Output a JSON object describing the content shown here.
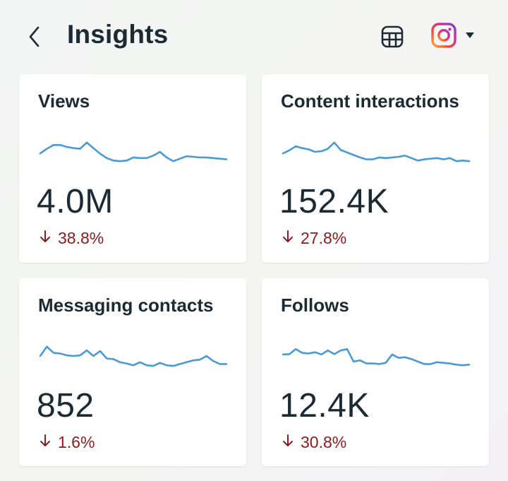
{
  "header": {
    "title": "Insights",
    "back_icon": "chevron-left-icon",
    "table_icon": "table-grid-icon",
    "account_icon": "instagram-icon",
    "dropdown_icon": "caret-down-icon"
  },
  "colors": {
    "sparkline": "#4a9ad4",
    "negative": "#8c1b1b",
    "text": "#1c2b33"
  },
  "cards": [
    {
      "title": "Views",
      "value": "4.0M",
      "change": "38.8%",
      "trend": "down",
      "sparkline": [
        0.45,
        0.6,
        0.72,
        0.72,
        0.66,
        0.62,
        0.6,
        0.8,
        0.62,
        0.44,
        0.3,
        0.22,
        0.2,
        0.22,
        0.32,
        0.3,
        0.3,
        0.38,
        0.5,
        0.32,
        0.2,
        0.28,
        0.36,
        0.34,
        0.32,
        0.32,
        0.3,
        0.28,
        0.26
      ]
    },
    {
      "title": "Content interactions",
      "value": "152.4K",
      "change": "27.8%",
      "trend": "down",
      "sparkline": [
        0.45,
        0.55,
        0.68,
        0.62,
        0.58,
        0.5,
        0.52,
        0.6,
        0.8,
        0.56,
        0.48,
        0.4,
        0.32,
        0.26,
        0.26,
        0.32,
        0.3,
        0.32,
        0.34,
        0.38,
        0.3,
        0.22,
        0.26,
        0.28,
        0.3,
        0.26,
        0.3,
        0.2,
        0.22,
        0.2
      ]
    },
    {
      "title": "Messaging contacts",
      "value": "852",
      "change": "1.6%",
      "trend": "down",
      "sparkline": [
        0.5,
        0.8,
        0.6,
        0.58,
        0.52,
        0.5,
        0.52,
        0.68,
        0.5,
        0.66,
        0.42,
        0.4,
        0.3,
        0.26,
        0.2,
        0.3,
        0.2,
        0.18,
        0.28,
        0.2,
        0.18,
        0.24,
        0.3,
        0.36,
        0.38,
        0.5,
        0.34,
        0.24,
        0.24
      ]
    },
    {
      "title": "Follows",
      "value": "12.4K",
      "change": "30.8%",
      "trend": "down",
      "sparkline": [
        0.55,
        0.56,
        0.72,
        0.6,
        0.58,
        0.62,
        0.55,
        0.68,
        0.56,
        0.68,
        0.72,
        0.32,
        0.36,
        0.26,
        0.26,
        0.24,
        0.28,
        0.55,
        0.44,
        0.46,
        0.4,
        0.32,
        0.24,
        0.24,
        0.3,
        0.28,
        0.26,
        0.22,
        0.2,
        0.22
      ]
    }
  ]
}
